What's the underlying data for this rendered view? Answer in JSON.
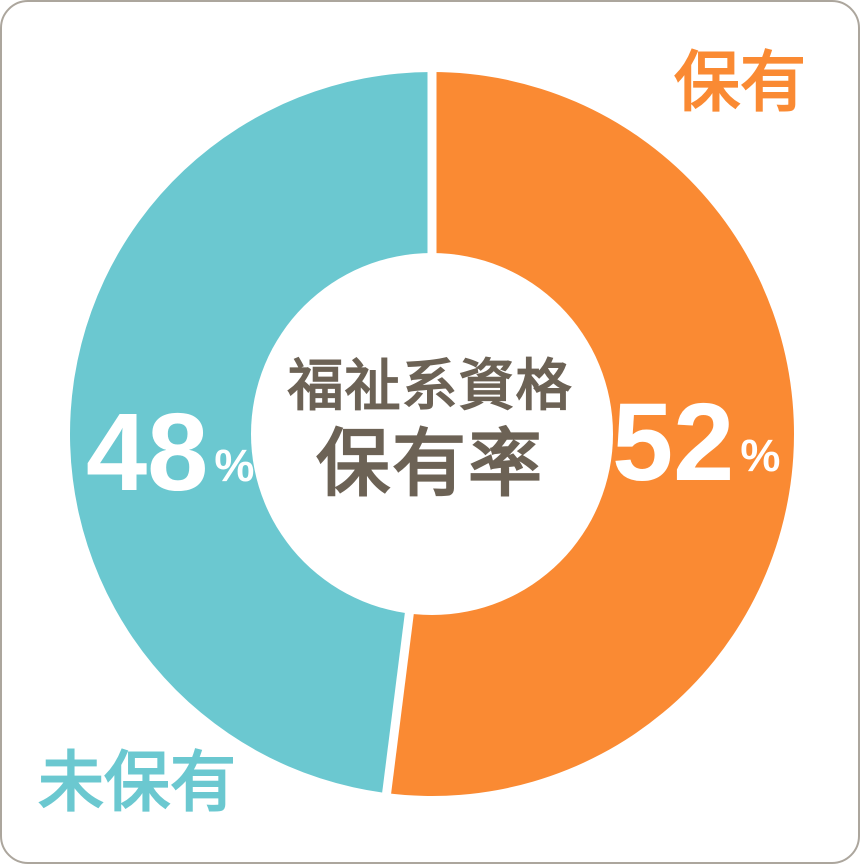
{
  "chart_data": {
    "type": "pie",
    "variant": "donut",
    "title": "福祉系資格保有率",
    "center_title": {
      "line1": "福祉系資格",
      "line2": "保有率"
    },
    "unit": "%",
    "categories": [
      "保有",
      "未保有"
    ],
    "values": [
      52,
      48
    ],
    "segments": [
      {
        "label": "保有",
        "value": 52,
        "color": "#fa8a33"
      },
      {
        "label": "未保有",
        "value": 48,
        "color": "#6bc8d0"
      }
    ],
    "start_angle_deg": 0,
    "direction": "clockwise",
    "hole_ratio": 0.5,
    "legend_position": "outside-corners",
    "separator_color": "#ffffff",
    "value_color": "#ffffff",
    "title_color": "#6c6255",
    "background": "#ffffff",
    "border_color": "#aca69d"
  }
}
